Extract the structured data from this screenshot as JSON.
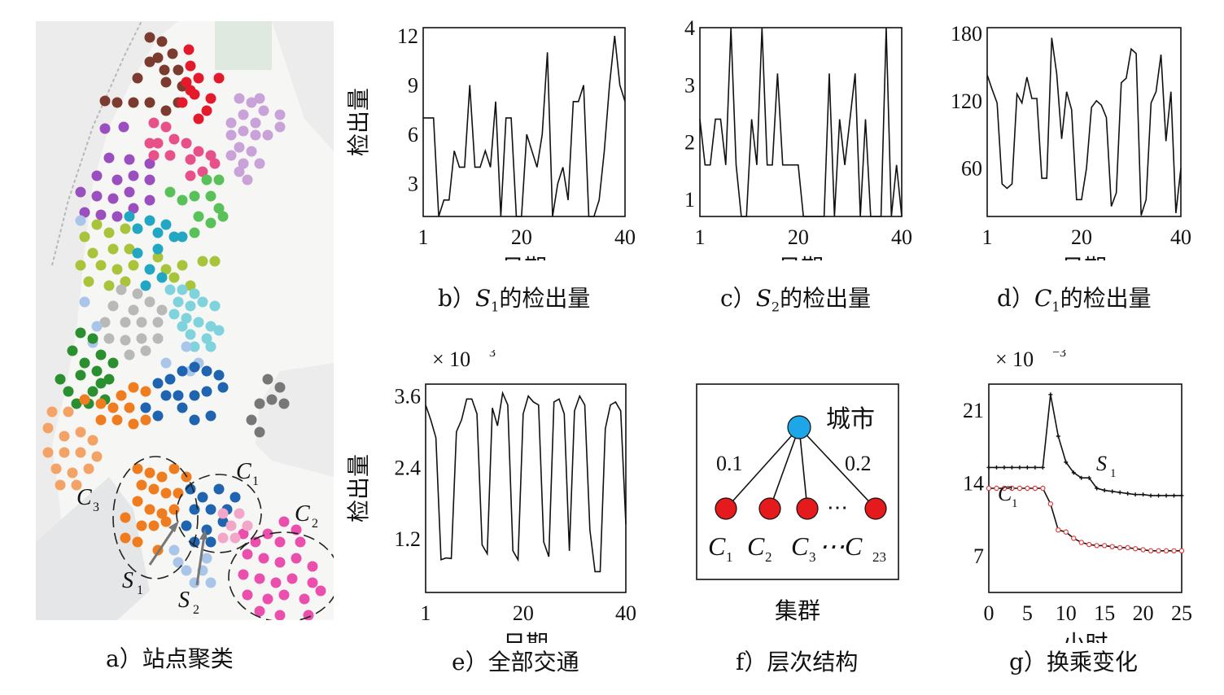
{
  "panel_a": {
    "caption": "a）站点聚类",
    "cluster_labels": [
      {
        "main": "C",
        "sub": "3"
      },
      {
        "main": "C",
        "sub": "1"
      },
      {
        "main": "C",
        "sub": "2"
      },
      {
        "main": "S",
        "sub": "1"
      },
      {
        "main": "S",
        "sub": "2"
      }
    ],
    "colors": {
      "brown": "#7b3b2e",
      "red": "#e41a2c",
      "lavender": "#c8a2d8",
      "purple": "#9b4fbf",
      "pink": "#e8508a",
      "green_light": "#59c15a",
      "olive": "#a8c43a",
      "teal": "#21a7c4",
      "cyan": "#7fd3dd",
      "gray": "#b9b9b9",
      "blue_light": "#a9c6ea",
      "dark_green": "#2a8f2f",
      "orange": "#ef7d1f",
      "navy": "#1f64b0",
      "peach": "#f4a366",
      "dark_gray": "#777777",
      "magenta": "#ea4fae",
      "pale_pink": "#f3a7c8"
    }
  },
  "chart_data": [
    {
      "id": "b",
      "type": "line",
      "caption_prefix": "b）",
      "caption_var": "S",
      "caption_sub": "1",
      "caption_suffix": "的检出量",
      "xlabel": "日期",
      "ylabel": "检出量",
      "xticks": [
        1,
        20,
        40
      ],
      "yticks": [
        3,
        6,
        9,
        12
      ],
      "xlim": [
        1,
        40
      ],
      "ylim": [
        1,
        12.5
      ],
      "x": [
        1,
        2,
        3,
        4,
        5,
        6,
        7,
        8,
        9,
        10,
        11,
        12,
        13,
        14,
        15,
        16,
        17,
        18,
        19,
        20,
        21,
        22,
        23,
        24,
        25,
        26,
        27,
        28,
        29,
        30,
        31,
        32,
        33,
        34,
        35,
        36,
        37,
        38,
        39,
        40
      ],
      "values": [
        7,
        7,
        7,
        1,
        2,
        2,
        5,
        4,
        4,
        9,
        4,
        4,
        5,
        4,
        8,
        1,
        7,
        7,
        1,
        1,
        6,
        5,
        4,
        6,
        11,
        1,
        3,
        4,
        2,
        8,
        8,
        9,
        1,
        1,
        2,
        5,
        9,
        12,
        9,
        8
      ]
    },
    {
      "id": "c",
      "type": "line",
      "caption_prefix": "c）",
      "caption_var": "S",
      "caption_sub": "2",
      "caption_suffix": "的检出量",
      "xlabel": "日期",
      "ylabel": "",
      "xticks": [
        1,
        20,
        40
      ],
      "yticks": [
        1,
        2,
        3,
        4
      ],
      "xlim": [
        1,
        40
      ],
      "ylim": [
        0.7,
        4
      ],
      "x": [
        1,
        2,
        3,
        4,
        5,
        6,
        7,
        8,
        9,
        10,
        11,
        12,
        13,
        14,
        15,
        16,
        17,
        18,
        19,
        20,
        21,
        22,
        23,
        24,
        25,
        26,
        27,
        28,
        29,
        30,
        31,
        32,
        33,
        34,
        35,
        36,
        37,
        38,
        39,
        40
      ],
      "values": [
        2.4,
        1.6,
        1.6,
        2.4,
        2.4,
        1.6,
        4,
        1.6,
        0.7,
        0.7,
        2.4,
        1.6,
        4,
        1.6,
        1.6,
        3.2,
        1.6,
        1.6,
        1.6,
        1.6,
        0.7,
        0.7,
        0.7,
        0.7,
        0.7,
        3.2,
        0.7,
        2.4,
        1.6,
        2.4,
        3.2,
        0.7,
        2.4,
        0.7,
        0.7,
        0.7,
        4,
        0.7,
        1.6,
        0.7
      ]
    },
    {
      "id": "d",
      "type": "line",
      "caption_prefix": "d）",
      "caption_var": "C",
      "caption_sub": "1",
      "caption_suffix": "的检出量",
      "xlabel": "日期",
      "ylabel": "",
      "xticks": [
        1,
        20,
        40
      ],
      "yticks": [
        60,
        120,
        180
      ],
      "xlim": [
        1,
        40
      ],
      "ylim": [
        17,
        185
      ],
      "x": [
        1,
        2,
        3,
        4,
        5,
        6,
        7,
        8,
        9,
        10,
        11,
        12,
        13,
        14,
        15,
        16,
        17,
        18,
        19,
        20,
        21,
        22,
        23,
        24,
        25,
        26,
        27,
        28,
        29,
        30,
        31,
        32,
        33,
        34,
        35,
        36,
        37,
        38,
        39,
        40
      ],
      "values": [
        143,
        130,
        118,
        46,
        42,
        46,
        126,
        118,
        141,
        122,
        122,
        51,
        51,
        176,
        144,
        86,
        128,
        112,
        32,
        32,
        60,
        114,
        120,
        116,
        105,
        26,
        38,
        136,
        140,
        166,
        162,
        18,
        32,
        118,
        128,
        161,
        84,
        128,
        20,
        60
      ]
    },
    {
      "id": "e",
      "type": "line",
      "caption_prefix": "e）",
      "caption_var": "",
      "caption_sub": "",
      "caption_suffix": "全部交通",
      "xlabel": "日期",
      "ylabel": "检出量",
      "multiplier": "× 10",
      "multiplier_exp": "3",
      "xticks": [
        1,
        20,
        40
      ],
      "yticks": [
        1.2,
        2.4,
        3.6
      ],
      "xlim": [
        1,
        40
      ],
      "ylim": [
        0.3,
        3.8
      ],
      "x": [
        1,
        2,
        3,
        4,
        5,
        6,
        7,
        8,
        9,
        10,
        11,
        12,
        13,
        14,
        15,
        16,
        17,
        18,
        19,
        20,
        21,
        22,
        23,
        24,
        25,
        26,
        27,
        28,
        29,
        30,
        31,
        32,
        33,
        34,
        35,
        36,
        37,
        38,
        39,
        40
      ],
      "values": [
        3.45,
        3.2,
        2.9,
        0.85,
        0.88,
        0.87,
        3.0,
        3.2,
        3.55,
        3.55,
        3.3,
        1.1,
        0.95,
        3.4,
        3.1,
        3.65,
        3.45,
        1.0,
        0.85,
        3.3,
        3.6,
        3.5,
        3.45,
        1.15,
        0.9,
        3.5,
        3.55,
        3.3,
        1.0,
        3.35,
        3.6,
        3.45,
        1.35,
        0.65,
        0.65,
        3.05,
        3.45,
        3.5,
        3.35,
        1.45
      ]
    },
    {
      "id": "g",
      "type": "line",
      "caption_prefix": "g）",
      "caption_var": "",
      "caption_sub": "",
      "caption_suffix": "换乘变化",
      "xlabel": "小时",
      "ylabel": "",
      "multiplier": "× 10",
      "multiplier_exp": "−3",
      "xticks": [
        0,
        5,
        10,
        15,
        20,
        25
      ],
      "yticks": [
        7,
        14,
        21
      ],
      "xlim": [
        0,
        25
      ],
      "ylim": [
        3.5,
        23.5
      ],
      "x": [
        0,
        1,
        2,
        3,
        4,
        5,
        6,
        7,
        8,
        9,
        10,
        11,
        12,
        13,
        14,
        15,
        16,
        17,
        18,
        19,
        20,
        21,
        22,
        23,
        24,
        25
      ],
      "series": [
        {
          "name": "S",
          "name_sub": "1",
          "color": "#111111",
          "values": [
            15.5,
            15.5,
            15.5,
            15.5,
            15.5,
            15.5,
            15.5,
            15.5,
            22.5,
            18.5,
            16.0,
            15.0,
            14.5,
            14.5,
            13.5,
            13.3,
            13.2,
            13.1,
            13.0,
            12.9,
            12.9,
            12.8,
            12.8,
            12.8,
            12.8,
            12.8
          ]
        },
        {
          "name": "C",
          "name_sub": "1",
          "color": "#e23b3b",
          "values": [
            13.5,
            13.5,
            13.5,
            13.5,
            13.5,
            13.5,
            13.5,
            13.5,
            12.0,
            9.5,
            9.3,
            8.7,
            8.3,
            8.1,
            8.0,
            8.0,
            7.9,
            7.8,
            7.8,
            7.7,
            7.6,
            7.5,
            7.5,
            7.5,
            7.5,
            7.5
          ]
        }
      ]
    }
  ],
  "panel_f": {
    "caption": "f）层次结构",
    "root_label": "城市",
    "left_weight": "0.1",
    "right_weight": "0.2",
    "ellipsis": "⋯",
    "leaves": [
      {
        "main": "C",
        "sub": "1"
      },
      {
        "main": "C",
        "sub": "2"
      },
      {
        "main": "C",
        "sub": "3"
      },
      {
        "main": "⋯C",
        "sub": "23"
      }
    ],
    "xlabel": "集群",
    "root_color": "#1ea7e8",
    "leaf_color": "#e41a1c"
  }
}
